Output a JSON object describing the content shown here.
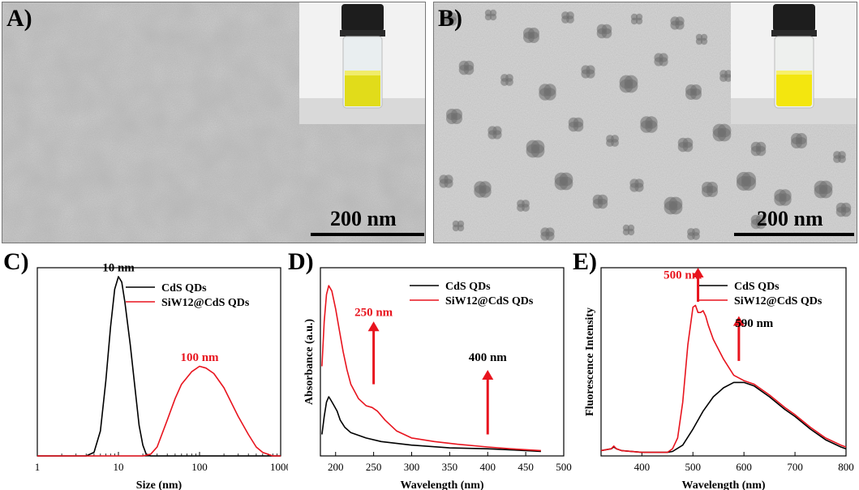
{
  "panels": {
    "a": {
      "label": "A)",
      "scale": "200 nm"
    },
    "b": {
      "label": "B)",
      "scale": "200 nm"
    },
    "c": {
      "label": "C)"
    },
    "d": {
      "label": "D)"
    },
    "e": {
      "label": "E)"
    }
  },
  "colors": {
    "black_series": "#000000",
    "red_series": "#e8141e",
    "annot_red": "#e8141e"
  },
  "chart_data": [
    {
      "type": "line",
      "xlabel": "Size (nm)",
      "ylabel": "",
      "xscale": "log",
      "xlim": [
        1,
        1000
      ],
      "ylim": [
        0,
        1.05
      ],
      "x_ticks": [
        "1",
        "10",
        "100",
        "1000"
      ],
      "legend_position": "top-right",
      "series": [
        {
          "name": "CdS QDs",
          "color": "#000000",
          "x": [
            1,
            4,
            5,
            6,
            7,
            8,
            9,
            10,
            11,
            12,
            14,
            16,
            18,
            20,
            22,
            25,
            1000
          ],
          "y": [
            0,
            0,
            0.02,
            0.14,
            0.42,
            0.72,
            0.93,
            1.0,
            0.97,
            0.86,
            0.62,
            0.38,
            0.17,
            0.06,
            0.01,
            0,
            0
          ]
        },
        {
          "name": "SiW12@CdS QDs",
          "color": "#e8141e",
          "x": [
            1,
            20,
            25,
            30,
            40,
            50,
            60,
            80,
            100,
            120,
            150,
            200,
            300,
            400,
            500,
            600,
            800,
            1000
          ],
          "y": [
            0,
            0,
            0.01,
            0.05,
            0.2,
            0.32,
            0.4,
            0.47,
            0.5,
            0.49,
            0.46,
            0.38,
            0.22,
            0.12,
            0.05,
            0.02,
            0,
            0
          ]
        }
      ],
      "annotations": [
        {
          "text": "10 nm",
          "color": "#000000",
          "x": 10,
          "y": 1.03
        },
        {
          "text": "100 nm",
          "color": "#e8141e",
          "x": 100,
          "y": 0.53
        }
      ]
    },
    {
      "type": "line",
      "xlabel": "Wavelength (nm)",
      "ylabel": "Absorbance (a.u.)",
      "xlim": [
        180,
        500
      ],
      "ylim": [
        0,
        1.05
      ],
      "x_ticks": [
        "200",
        "250",
        "300",
        "350",
        "400",
        "450",
        "500"
      ],
      "legend_position": "top-right",
      "series": [
        {
          "name": "CdS QDs",
          "color": "#000000",
          "x": [
            182,
            185,
            188,
            191,
            194,
            198,
            202,
            206,
            212,
            220,
            240,
            260,
            300,
            350,
            400,
            450,
            470
          ],
          "y": [
            0.12,
            0.22,
            0.3,
            0.33,
            0.31,
            0.28,
            0.25,
            0.2,
            0.16,
            0.13,
            0.1,
            0.08,
            0.06,
            0.045,
            0.04,
            0.03,
            0.025
          ]
        },
        {
          "name": "SiW12@CdS QDs",
          "color": "#e8141e",
          "x": [
            182,
            185,
            188,
            191,
            195,
            200,
            205,
            210,
            215,
            220,
            230,
            240,
            248,
            255,
            265,
            280,
            300,
            330,
            360,
            400,
            430,
            470
          ],
          "y": [
            0.5,
            0.75,
            0.9,
            0.95,
            0.92,
            0.82,
            0.7,
            0.58,
            0.48,
            0.4,
            0.32,
            0.28,
            0.27,
            0.25,
            0.2,
            0.14,
            0.1,
            0.08,
            0.065,
            0.05,
            0.04,
            0.03
          ]
        }
      ],
      "annotations": [
        {
          "text": "250 nm",
          "color": "#e8141e",
          "x": 250,
          "y": 0.78
        },
        {
          "text": "400 nm",
          "color": "#000000",
          "x": 400,
          "y": 0.53
        }
      ],
      "arrows": [
        {
          "x": 250,
          "y_from": 0.4,
          "y_to": 0.75,
          "color": "#e8141e"
        },
        {
          "x": 400,
          "y_from": 0.12,
          "y_to": 0.48,
          "color": "#e8141e"
        }
      ]
    },
    {
      "type": "line",
      "xlabel": "Wavelength (nm)",
      "ylabel": "Fluorescence Intensity",
      "xlim": [
        320,
        800
      ],
      "ylim": [
        0,
        1.05
      ],
      "x_ticks": [
        "400",
        "500",
        "600",
        "700",
        "800"
      ],
      "legend_position": "top-right",
      "series": [
        {
          "name": "CdS QDs",
          "color": "#000000",
          "x": [
            320,
            330,
            340,
            345,
            350,
            360,
            400,
            450,
            460,
            480,
            500,
            520,
            540,
            560,
            580,
            600,
            620,
            650,
            680,
            700,
            730,
            760,
            790,
            800
          ],
          "y": [
            0.03,
            0.035,
            0.04,
            0.05,
            0.04,
            0.03,
            0.02,
            0.02,
            0.025,
            0.06,
            0.15,
            0.25,
            0.33,
            0.38,
            0.41,
            0.41,
            0.39,
            0.33,
            0.26,
            0.22,
            0.15,
            0.09,
            0.05,
            0.04
          ]
        },
        {
          "name": "SiW12@CdS QDs",
          "color": "#e8141e",
          "x": [
            320,
            330,
            340,
            345,
            350,
            360,
            400,
            450,
            460,
            470,
            480,
            490,
            500,
            505,
            510,
            515,
            520,
            525,
            530,
            540,
            560,
            580,
            600,
            620,
            650,
            680,
            700,
            730,
            760,
            790,
            800
          ],
          "y": [
            0.03,
            0.035,
            0.04,
            0.055,
            0.04,
            0.03,
            0.02,
            0.02,
            0.04,
            0.1,
            0.3,
            0.62,
            0.83,
            0.84,
            0.8,
            0.8,
            0.81,
            0.78,
            0.73,
            0.65,
            0.54,
            0.45,
            0.42,
            0.4,
            0.34,
            0.27,
            0.23,
            0.16,
            0.1,
            0.06,
            0.05
          ]
        }
      ],
      "annotations": [
        {
          "text": "500 nm",
          "color": "#e8141e",
          "x": 480,
          "y": 0.99
        },
        {
          "text": "590 nm",
          "color": "#000000",
          "x": 620,
          "y": 0.72
        }
      ],
      "arrows": [
        {
          "x": 510,
          "y_from": 0.86,
          "y_to": 1.05,
          "color": "#e8141e"
        },
        {
          "x": 590,
          "y_from": 0.53,
          "y_to": 0.78,
          "color": "#e8141e"
        }
      ]
    }
  ]
}
